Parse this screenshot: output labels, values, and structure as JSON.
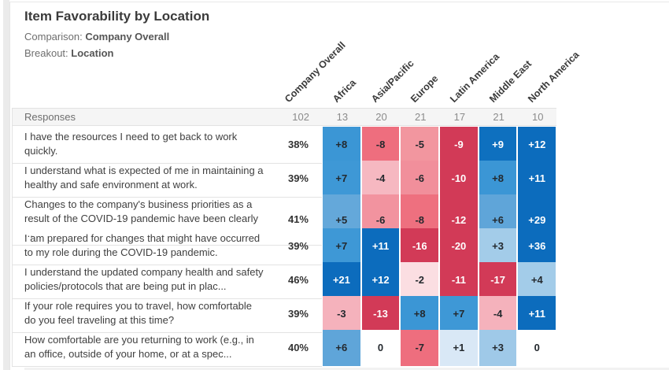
{
  "header": {
    "title": "Item Favorability by Location",
    "comparison_label": "Comparison:",
    "comparison_value": "Company Overall",
    "breakout_label": "Breakout:",
    "breakout_value": "Location"
  },
  "table": {
    "responses_label": "Responses",
    "columns": [
      "Company Overall",
      "Africa",
      "Asia/Pacific",
      "Europe",
      "Latin America",
      "Middle East",
      "North America"
    ],
    "responses": [
      "102",
      "13",
      "20",
      "21",
      "17",
      "21",
      "10"
    ],
    "text_dark": "#24292e",
    "text_light": "#ffffff",
    "rows": [
      {
        "question": "I have the resources I need to get back to work quickly.",
        "overall": "38%",
        "cells": [
          {
            "t": "+8",
            "bg": "#3b96d5",
            "light": false
          },
          {
            "t": "-8",
            "bg": "#ee6e7e",
            "light": false
          },
          {
            "t": "-5",
            "bg": "#f2969f",
            "light": false
          },
          {
            "t": "-9",
            "bg": "#d23a57",
            "light": true
          },
          {
            "t": "+9",
            "bg": "#0e70bf",
            "light": true
          },
          {
            "t": "+12",
            "bg": "#0c6cbd",
            "light": true
          }
        ]
      },
      {
        "question": "I understand what is expected of me in maintaining a healthy and safe environment at work.",
        "overall": "39%",
        "cells": [
          {
            "t": "+7",
            "bg": "#3e98d6",
            "light": false
          },
          {
            "t": "-4",
            "bg": "#f6b8c1",
            "light": false
          },
          {
            "t": "-6",
            "bg": "#f18f9b",
            "light": false
          },
          {
            "t": "-10",
            "bg": "#d23a57",
            "light": true
          },
          {
            "t": "+8",
            "bg": "#3b96d5",
            "light": false
          },
          {
            "t": "+11",
            "bg": "#0c6cbd",
            "light": true
          }
        ]
      },
      {
        "question": "Changes to the company's business priorities as a result of the COVID-19 pandemic have been clearly ...",
        "overall": "41%",
        "cells": [
          {
            "t": "+5",
            "bg": "#64a8da",
            "light": false
          },
          {
            "t": "-6",
            "bg": "#f2939f",
            "light": false
          },
          {
            "t": "-8",
            "bg": "#ee707f",
            "light": false
          },
          {
            "t": "-12",
            "bg": "#d23a57",
            "light": true
          },
          {
            "t": "+6",
            "bg": "#5fa5d9",
            "light": false
          },
          {
            "t": "+29",
            "bg": "#0c6cbd",
            "light": true
          }
        ]
      },
      {
        "question": "I am prepared for changes that might have occurred to my role during the COVID-19 pandemic.",
        "overall": "39%",
        "cells": [
          {
            "t": "+7",
            "bg": "#3e98d6",
            "light": false
          },
          {
            "t": "+11",
            "bg": "#0c6cbd",
            "light": true
          },
          {
            "t": "-16",
            "bg": "#d23a57",
            "light": true
          },
          {
            "t": "-20",
            "bg": "#d23a57",
            "light": true
          },
          {
            "t": "+3",
            "bg": "#a3cce9",
            "light": false
          },
          {
            "t": "+36",
            "bg": "#0c6cbd",
            "light": true
          }
        ]
      },
      {
        "question": "I understand the updated company health and safety policies/protocols that are being put in plac...",
        "overall": "46%",
        "cells": [
          {
            "t": "+21",
            "bg": "#0c6cbd",
            "light": true
          },
          {
            "t": "+12",
            "bg": "#0c6cbd",
            "light": true
          },
          {
            "t": "-2",
            "bg": "#fbdee2",
            "light": false
          },
          {
            "t": "-11",
            "bg": "#d23a57",
            "light": true
          },
          {
            "t": "-17",
            "bg": "#d23a57",
            "light": true
          },
          {
            "t": "+4",
            "bg": "#a3cce9",
            "light": false
          }
        ]
      },
      {
        "question": "If your role requires you to travel, how comfortable do you feel traveling at this time?",
        "overall": "39%",
        "cells": [
          {
            "t": "-3",
            "bg": "#f5b2bc",
            "light": false
          },
          {
            "t": "-13",
            "bg": "#d23a57",
            "light": true
          },
          {
            "t": "+8",
            "bg": "#3b96d5",
            "light": false
          },
          {
            "t": "+7",
            "bg": "#3e98d6",
            "light": false
          },
          {
            "t": "-4",
            "bg": "#f5b2bc",
            "light": false
          },
          {
            "t": "+11",
            "bg": "#0c6cbd",
            "light": true
          }
        ]
      },
      {
        "question": "How comfortable are you returning to work (e.g., in an office, outside of your home, or at a spec...",
        "overall": "40%",
        "cells": [
          {
            "t": "+6",
            "bg": "#5fa5d9",
            "light": false
          },
          {
            "t": "0",
            "bg": "#ffffff",
            "light": false
          },
          {
            "t": "-7",
            "bg": "#ee6e7e",
            "light": false
          },
          {
            "t": "+1",
            "bg": "#d9e8f6",
            "light": false
          },
          {
            "t": "+3",
            "bg": "#9fc9e8",
            "light": false
          },
          {
            "t": "0",
            "bg": "#ffffff",
            "light": false
          }
        ]
      }
    ]
  },
  "chart_data": {
    "type": "heatmap",
    "title": "Item Favorability by Location",
    "comparison": "Company Overall",
    "breakout": "Location",
    "legend_note": "diverging scale: blue = positive difference vs Company Overall, red = negative difference",
    "color_positive": "#0c6cbd",
    "color_negative": "#d23a57",
    "columns": [
      "Africa",
      "Asia/Pacific",
      "Europe",
      "Latin America",
      "Middle East",
      "North America"
    ],
    "company_overall_responses": 102,
    "column_responses": [
      13,
      20,
      21,
      17,
      21,
      10
    ],
    "rows": [
      {
        "item": "I have the resources I need to get back to work quickly.",
        "company_overall_favorability_pct": 38,
        "diffs_vs_overall": [
          8,
          -8,
          -5,
          -9,
          9,
          12
        ]
      },
      {
        "item": "I understand what is expected of me in maintaining a healthy and safe environment at work.",
        "company_overall_favorability_pct": 39,
        "diffs_vs_overall": [
          7,
          -4,
          -6,
          -10,
          8,
          11
        ]
      },
      {
        "item": "Changes to the company's business priorities as a result of the COVID-19 pandemic have been clearly ...",
        "company_overall_favorability_pct": 41,
        "diffs_vs_overall": [
          5,
          -6,
          -8,
          -12,
          6,
          29
        ]
      },
      {
        "item": "I am prepared for changes that might have occurred to my role during the COVID-19 pandemic.",
        "company_overall_favorability_pct": 39,
        "diffs_vs_overall": [
          7,
          11,
          -16,
          -20,
          3,
          36
        ]
      },
      {
        "item": "I understand the updated company health and safety policies/protocols that are being put in plac...",
        "company_overall_favorability_pct": 46,
        "diffs_vs_overall": [
          21,
          12,
          -2,
          -11,
          -17,
          4
        ]
      },
      {
        "item": "If your role requires you to travel, how comfortable do you feel traveling at this time?",
        "company_overall_favorability_pct": 39,
        "diffs_vs_overall": [
          -3,
          -13,
          8,
          7,
          -4,
          11
        ]
      },
      {
        "item": "How comfortable are you returning to work (e.g., in an office, outside of your home, or at a spec...",
        "company_overall_favorability_pct": 40,
        "diffs_vs_overall": [
          6,
          0,
          -7,
          1,
          3,
          0
        ]
      }
    ]
  }
}
